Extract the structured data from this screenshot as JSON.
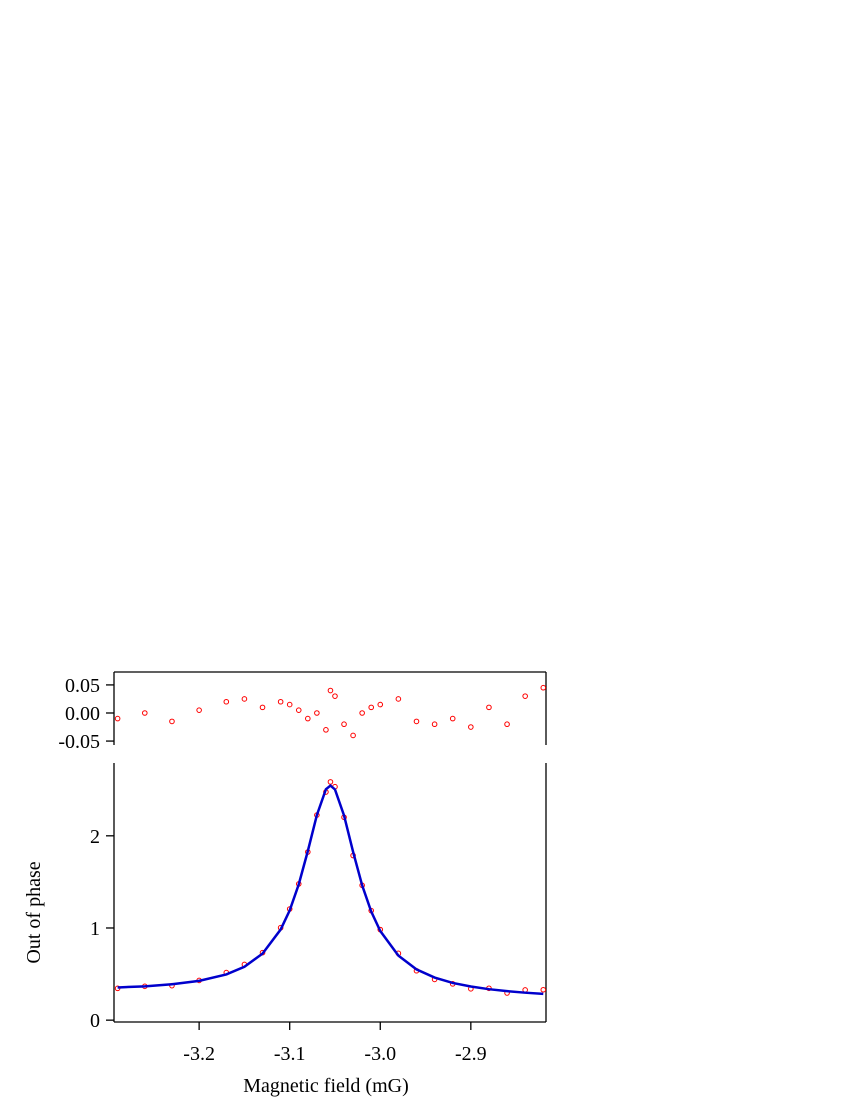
{
  "chart_data": [
    {
      "type": "scatter",
      "x": [
        -3.29,
        -3.26,
        -3.23,
        -3.2,
        -3.17,
        -3.15,
        -3.13,
        -3.11,
        -3.1,
        -3.09,
        -3.08,
        -3.07,
        -3.06,
        -3.055,
        -3.05,
        -3.04,
        -3.03,
        -3.02,
        -3.01,
        -3.0,
        -2.98,
        -2.96,
        -2.94,
        -2.92,
        -2.9,
        -2.88,
        -2.86,
        -2.84,
        -2.82
      ],
      "series": [
        {
          "color": "#ff0000",
          "mode": "markers",
          "values": [
            -0.01,
            0.0,
            -0.015,
            0.005,
            0.02,
            0.025,
            0.01,
            0.02,
            0.015,
            0.005,
            -0.01,
            0.0,
            -0.03,
            0.04,
            0.03,
            -0.02,
            -0.04,
            0.0,
            0.01,
            0.015,
            0.025,
            -0.015,
            -0.02,
            -0.01,
            -0.025,
            0.01,
            -0.02,
            0.03,
            0.045
          ]
        }
      ],
      "xlim": [
        -3.294,
        -2.817
      ],
      "ylim": [
        -0.057,
        0.073
      ],
      "yticks": [
        0.05,
        {
          "value": 0,
          "label": "0.00"
        },
        -0.05
      ]
    },
    {
      "type": "scatter",
      "x": [
        -3.29,
        -3.26,
        -3.23,
        -3.2,
        -3.17,
        -3.15,
        -3.13,
        -3.11,
        -3.1,
        -3.09,
        -3.08,
        -3.07,
        -3.06,
        -3.055,
        -3.05,
        -3.04,
        -3.03,
        -3.02,
        -3.01,
        -3.0,
        -2.98,
        -2.96,
        -2.94,
        -2.92,
        -2.9,
        -2.88,
        -2.86,
        -2.84,
        -2.82
      ],
      "series": [
        {
          "color": "#ff0000",
          "mode": "markers",
          "values": [
            0.345,
            0.367,
            0.374,
            0.431,
            0.516,
            0.604,
            0.732,
            1.003,
            1.206,
            1.478,
            1.824,
            2.225,
            2.475,
            2.585,
            2.533,
            2.201,
            1.786,
            1.463,
            1.188,
            0.982,
            0.725,
            0.536,
            0.442,
            0.394,
            0.34,
            0.346,
            0.295,
            0.328,
            0.33
          ]
        },
        {
          "color": "#0000cc",
          "mode": "line",
          "values": [
            0.355,
            0.367,
            0.389,
            0.426,
            0.496,
            0.579,
            0.722,
            0.983,
            1.191,
            1.473,
            1.834,
            2.225,
            2.505,
            2.545,
            2.503,
            2.221,
            1.826,
            1.463,
            1.178,
            0.967,
            0.7,
            0.551,
            0.462,
            0.404,
            0.365,
            0.336,
            0.315,
            0.298,
            0.285
          ]
        }
      ],
      "xlim": [
        -3.294,
        -2.817
      ],
      "ylim": [
        -0.02,
        2.79
      ],
      "xticks": [
        -3.2,
        -3.1,
        {
          "value": -3,
          "label": "-3.0"
        },
        -2.9
      ],
      "yticks": [
        0,
        1,
        2
      ],
      "xlabel": "Magnetic field (mG)",
      "ylabel": "Out of phase"
    }
  ]
}
